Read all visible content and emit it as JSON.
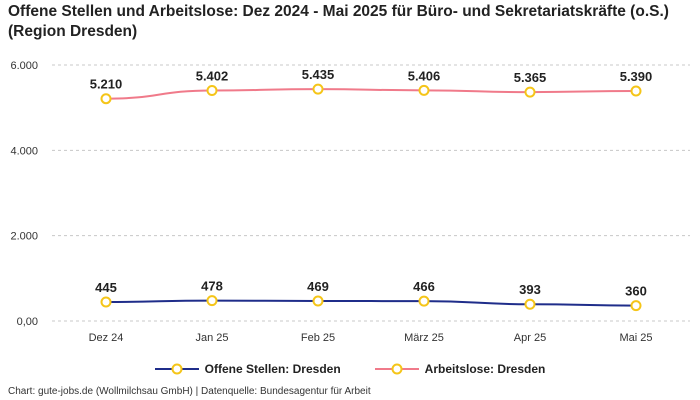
{
  "title": "Offene Stellen und Arbeitslose: Dez 2024 - Mai 2025 für Büro- und Sekretariatskräfte (o.S.) (Region Dresden)",
  "footer": "Chart: gute-jobs.de (Wollmilchsau GmbH) | Datenquelle: Bundesagentur für Arbeit",
  "colors": {
    "open_positions": "#1f2d8a",
    "unemployed": "#f07a8a",
    "marker": "#f5c518"
  },
  "chart_data": {
    "type": "line",
    "title": "Offene Stellen und Arbeitslose: Dez 2024 - Mai 2025 für Büro- und Sekretariatskräfte (o.S.) (Region Dresden)",
    "categories": [
      "Dez 24",
      "Jan 25",
      "Feb 25",
      "März 25",
      "Apr 25",
      "Mai 25"
    ],
    "series": [
      {
        "name": "Offene Stellen: Dresden",
        "values": [
          445,
          478,
          469,
          466,
          393,
          360
        ],
        "labels": [
          "445",
          "478",
          "469",
          "466",
          "393",
          "360"
        ]
      },
      {
        "name": "Arbeitslose: Dresden",
        "values": [
          5210,
          5402,
          5435,
          5406,
          5365,
          5390
        ],
        "labels": [
          "5.210",
          "5.402",
          "5.435",
          "5.406",
          "5.365",
          "5.390"
        ]
      }
    ],
    "yticks": [
      0,
      2000,
      4000,
      6000
    ],
    "ytick_labels": [
      "0,00",
      "2.000",
      "4.000",
      "6.000"
    ],
    "ylim": [
      0,
      6000
    ],
    "grid": true,
    "legend_position": "bottom"
  }
}
